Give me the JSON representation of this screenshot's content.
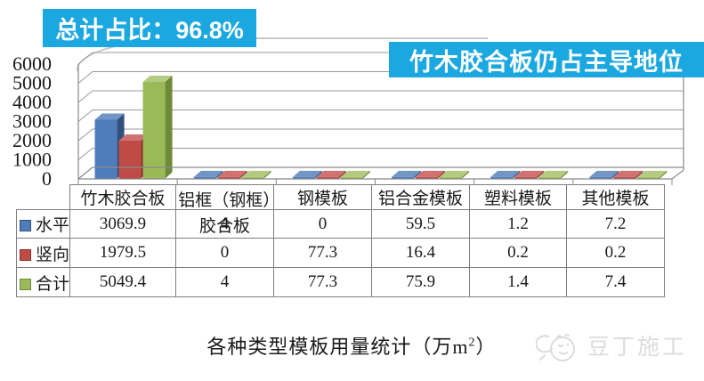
{
  "badge": {
    "label": "总计占比：96.8%"
  },
  "banner": {
    "label": "竹木胶合板仍占主导地位"
  },
  "chart_data": {
    "type": "bar",
    "variant": "3d-clustered-column",
    "title": "各种类型模板用量统计（万m2）",
    "categories": [
      "竹木胶合板",
      "铝框（钢框）胶合板",
      "钢模板",
      "铝合金模板",
      "塑料模板",
      "其他模板"
    ],
    "series": [
      {
        "name": "水平",
        "color": "#4f7cba",
        "values": [
          3069.9,
          4,
          0,
          59.5,
          1.2,
          7.2
        ]
      },
      {
        "name": "竖向",
        "color": "#bf4b47",
        "values": [
          1979.5,
          0,
          77.3,
          16.4,
          0.2,
          0.2
        ]
      },
      {
        "name": "合计",
        "color": "#9aba58",
        "values": [
          5049.4,
          4,
          77.3,
          75.9,
          1.4,
          7.4
        ]
      }
    ],
    "ylim": [
      0,
      6000
    ],
    "yticks": [
      0,
      1000,
      2000,
      3000,
      4000,
      5000,
      6000
    ],
    "grid": true,
    "legend_position": "table-rows-left"
  },
  "caption": {
    "prefix": "各种类型模板用量统计（万m",
    "sup": "2",
    "suffix": "）"
  },
  "watermark": {
    "label": "豆丁施工"
  },
  "colors": {
    "accent": "#1ba7e0",
    "grid": "#9a9a9a",
    "axis": "#8a8a8a"
  }
}
